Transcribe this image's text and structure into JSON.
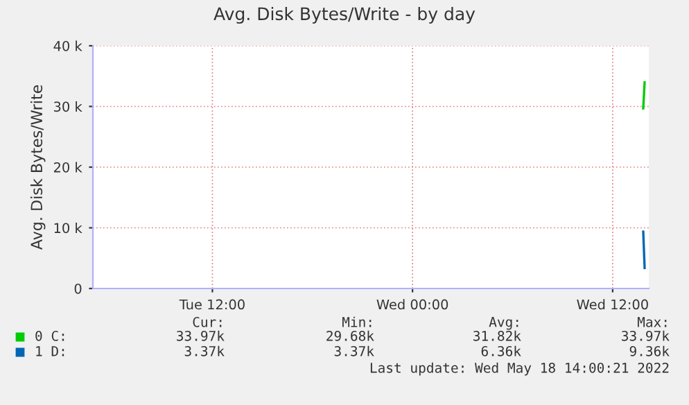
{
  "chart_data": {
    "type": "line",
    "title": "Avg. Disk Bytes/Write - by day",
    "ylabel": "Avg. Disk Bytes/Write",
    "xlim": [
      "2022-05-17T04:50",
      "2022-05-18T14:10"
    ],
    "xticks": [
      {
        "value": "2022-05-17T12:00",
        "label": "Tue 12:00"
      },
      {
        "value": "2022-05-18T00:00",
        "label": "Wed 00:00"
      },
      {
        "value": "2022-05-18T12:00",
        "label": "Wed 12:00"
      }
    ],
    "ylim": [
      0,
      40000
    ],
    "yticks": [
      {
        "value": 0,
        "label": "0"
      },
      {
        "value": 10000,
        "label": "10 k"
      },
      {
        "value": 20000,
        "label": "20 k"
      },
      {
        "value": 30000,
        "label": "30 k"
      },
      {
        "value": 40000,
        "label": "40 k"
      }
    ],
    "grid": true,
    "legend": "bottom",
    "series": [
      {
        "name": "0 C:",
        "color": "#00cc00",
        "x": [
          "2022-05-18T13:50",
          "2022-05-18T13:55"
        ],
        "values": [
          29680,
          33970
        ]
      },
      {
        "name": "1 D:",
        "color": "#0066b3",
        "x": [
          "2022-05-18T13:50",
          "2022-05-18T13:55"
        ],
        "values": [
          9360,
          3370
        ]
      }
    ],
    "annotations": [
      "Cur:",
      "Min:",
      "Avg:",
      "Max:",
      "33.97k",
      "29.68k",
      "31.82k",
      "33.97k",
      "3.37k",
      "3.37k",
      "6.36k",
      "9.36k",
      "Last update: Wed May 18 14:00:21 2022"
    ]
  }
}
